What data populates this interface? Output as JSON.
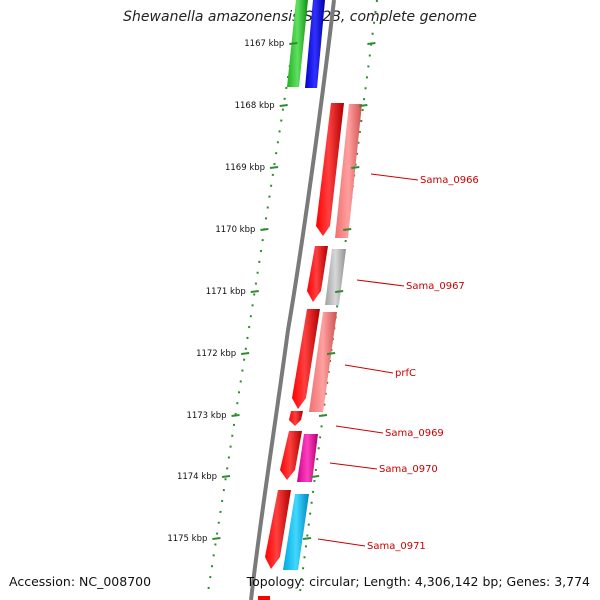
{
  "title": "Shewanella amazonensis SB2B, complete genome",
  "footer": {
    "accession": "Accession: NC_008700",
    "summary": "Topology: circular; Length: 4,306,142 bp; Genes: 3,774"
  },
  "axis": {
    "unit": "kbp",
    "ticks": [
      "1167 kbp",
      "1168 kbp",
      "1169 kbp",
      "1170 kbp",
      "1171 kbp",
      "1172 kbp",
      "1173 kbp",
      "1174 kbp",
      "1175 kbp"
    ]
  },
  "colors": {
    "backbone": "#808080",
    "tick": "#2e8b2e",
    "gene_red": "#ff0000",
    "label": "#cc0000"
  },
  "genes": [
    {
      "label": "Sama_0966"
    },
    {
      "label": "Sama_0967"
    },
    {
      "label": "prfC"
    },
    {
      "label": "Sama_0969"
    },
    {
      "label": "Sama_0970"
    },
    {
      "label": "Sama_0971"
    }
  ]
}
